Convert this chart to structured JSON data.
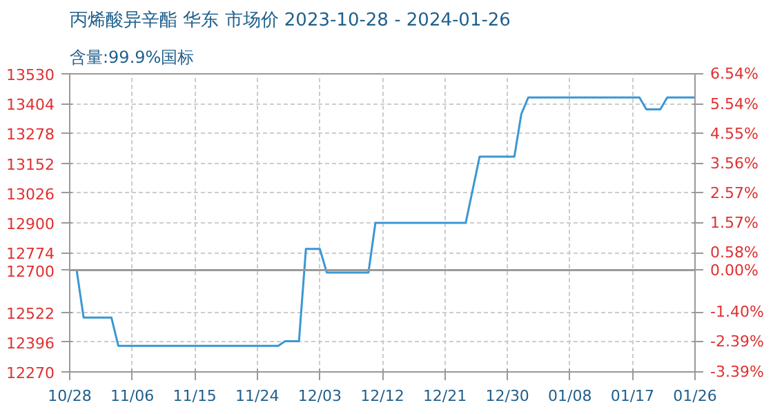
{
  "chart_data": {
    "type": "line",
    "title": "丙烯酸异辛酯 华东 市场价 2023-10-28 - 2024-01-26",
    "subtitle": "含量:99.9%国标",
    "x": [
      "2023-10-28",
      "2023-10-29",
      "2023-10-30",
      "2023-11-03",
      "2023-11-04",
      "2023-11-27",
      "2023-11-28",
      "2023-11-30",
      "2023-12-01",
      "2023-12-03",
      "2023-12-04",
      "2023-12-10",
      "2023-12-11",
      "2023-12-24",
      "2023-12-26",
      "2023-12-31",
      "2024-01-01",
      "2024-01-02",
      "2024-01-18",
      "2024-01-19",
      "2024-01-21",
      "2024-01-22",
      "2024-01-26"
    ],
    "series": [
      {
        "color": "#3a97d4",
        "values": [
          12700,
          12700,
          12500,
          12500,
          12380,
          12380,
          12400,
          12400,
          12790,
          12790,
          12690,
          12690,
          12900,
          12900,
          13180,
          13180,
          13360,
          13430,
          13430,
          13380,
          13380,
          13430,
          13430
        ]
      }
    ],
    "xlim": [
      "2023-10-28",
      "2024-01-26"
    ],
    "xticks": [
      {
        "value": "2023-10-28",
        "label": "10/28"
      },
      {
        "value": "2023-11-06",
        "label": "11/06"
      },
      {
        "value": "2023-11-15",
        "label": "11/15"
      },
      {
        "value": "2023-11-24",
        "label": "11/24"
      },
      {
        "value": "2023-12-03",
        "label": "12/03"
      },
      {
        "value": "2023-12-12",
        "label": "12/12"
      },
      {
        "value": "2023-12-21",
        "label": "12/21"
      },
      {
        "value": "2023-12-30",
        "label": "12/30"
      },
      {
        "value": "2024-01-08",
        "label": "01/08"
      },
      {
        "value": "2024-01-17",
        "label": "01/17"
      },
      {
        "value": "2024-01-26",
        "label": "01/26"
      }
    ],
    "ylim": [
      12270,
      13530
    ],
    "yticks": [
      12270,
      12396,
      12522,
      12700,
      12774,
      12900,
      13026,
      13152,
      13278,
      13404,
      13530
    ],
    "y2lim": [
      -3.39,
      6.54
    ],
    "y2ticks": [
      {
        "value": -3.39,
        "label": "-3.39%"
      },
      {
        "value": -2.39,
        "label": "-2.39%"
      },
      {
        "value": -1.4,
        "label": "-1.40%"
      },
      {
        "value": 0,
        "label": "0.00%"
      },
      {
        "value": 0.58,
        "label": "0.58%"
      },
      {
        "value": 1.57,
        "label": "1.57%"
      },
      {
        "value": 2.57,
        "label": "2.57%"
      },
      {
        "value": 3.56,
        "label": "3.56%"
      },
      {
        "value": 4.55,
        "label": "4.55%"
      },
      {
        "value": 5.54,
        "label": "5.54%"
      },
      {
        "value": 6.54,
        "label": "6.54%"
      }
    ],
    "ref_lines": [
      {
        "axis": "y",
        "value": 12700,
        "color": "#999999"
      }
    ],
    "grid": true,
    "line_style": "solid"
  }
}
